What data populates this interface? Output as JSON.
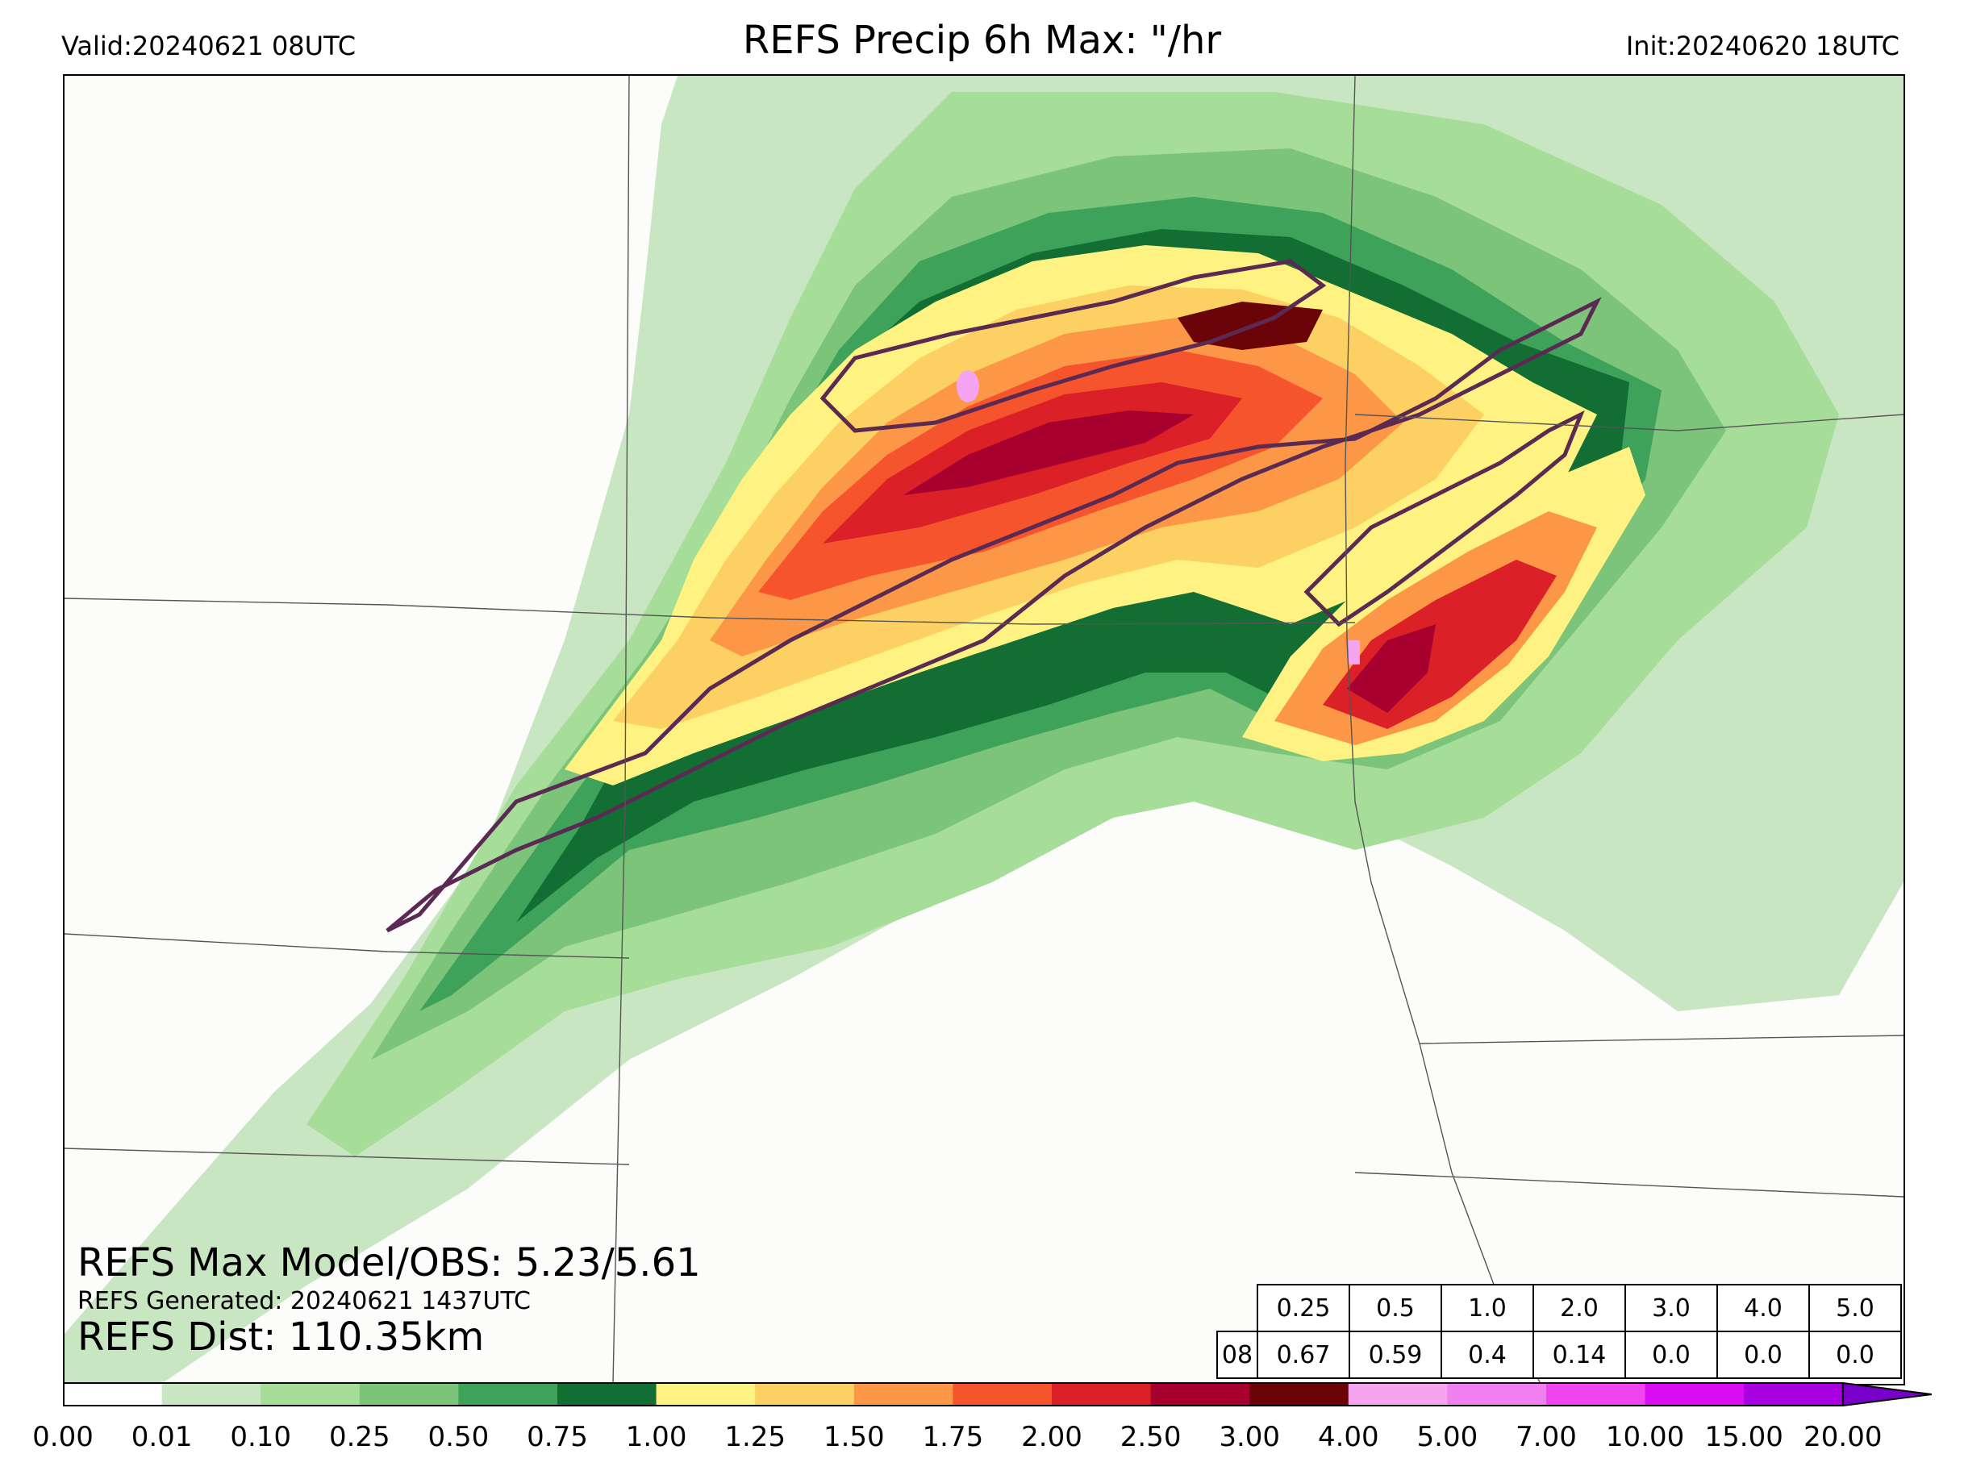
{
  "header": {
    "valid": "Valid:20240621 08UTC",
    "title": "REFS Precip 6h Max: \"/hr",
    "init": "Init:20240620 18UTC"
  },
  "stats": {
    "max_model_obs": "REFS Max Model/OBS: 5.23/5.61",
    "generated": "REFS Generated: 20240621 1437UTC",
    "dist": "REFS Dist: 110.35km"
  },
  "prob_table": {
    "row_label": "08",
    "thresholds": [
      "0.25",
      "0.5",
      "1.0",
      "2.0",
      "3.0",
      "4.0",
      "5.0"
    ],
    "values": [
      "0.67",
      "0.59",
      "0.4",
      "0.14",
      "0.0",
      "0.0",
      "0.0"
    ]
  },
  "colorbar": {
    "ticks": [
      "0.00",
      "0.01",
      "0.10",
      "0.25",
      "0.50",
      "0.75",
      "1.00",
      "1.25",
      "1.50",
      "1.75",
      "2.00",
      "2.50",
      "3.00",
      "4.00",
      "5.00",
      "7.00",
      "10.00",
      "15.00",
      "20.00"
    ],
    "colors": [
      "#ffffff",
      "#c9e6c2",
      "#a6dd98",
      "#7cc47a",
      "#3ea25a",
      "#126e33",
      "#fdf282",
      "#fcd062",
      "#fb9746",
      "#f5542d",
      "#db2027",
      "#a7002f",
      "#6b0408",
      "#f6a4f0",
      "#f07ff0",
      "#f044ee",
      "#da0ef0",
      "#a800e0",
      "#7800c8"
    ]
  },
  "legend_colors": {
    "light_green": "#c9e6c2",
    "mid_green": "#7cc47a",
    "dark_green": "#126e33",
    "yellow": "#fdf282",
    "orange": "#fb9746",
    "red": "#db2027",
    "dark_red": "#6b0408",
    "pink": "#f6a4f0",
    "obs_contour": "#5a2a52"
  }
}
